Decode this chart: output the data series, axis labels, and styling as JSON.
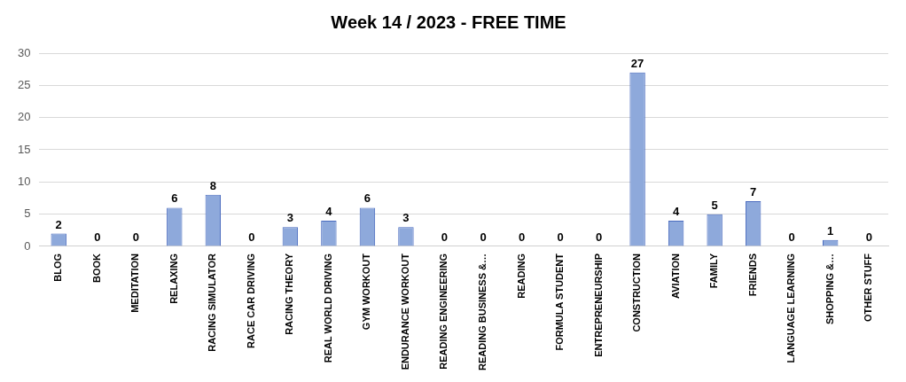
{
  "chart_data": {
    "type": "bar",
    "title": "Week 14 / 2023 - FREE TIME",
    "categories": [
      "BLOG",
      "BOOK",
      "MEDITATION",
      "RELAXING",
      "RACING SIMULATOR",
      "RACE CAR DRIVING",
      "RACING THEORY",
      "REAL WORLD DRIVING",
      "GYM WORKOUT",
      "ENDURANCE WORKOUT",
      "READING ENGINEERING",
      "READING BUSINESS &…",
      "READING",
      "FORMULA STUDENT",
      "ENTREPRENEURSHIP",
      "CONSTRUCTION",
      "AVIATION",
      "FAMILY",
      "FRIENDS",
      "LANGUAGE LEARNING",
      "SHOPPING &…",
      "OTHER STUFF"
    ],
    "values": [
      2,
      0,
      0,
      6,
      8,
      0,
      3,
      4,
      6,
      3,
      0,
      0,
      0,
      0,
      0,
      27,
      4,
      5,
      7,
      0,
      1,
      0
    ],
    "color": "#8ea9db",
    "ylim": [
      0,
      30
    ],
    "yticks": [
      0,
      5,
      10,
      15,
      20,
      25,
      30
    ],
    "grid": "y",
    "data_labels": true
  }
}
